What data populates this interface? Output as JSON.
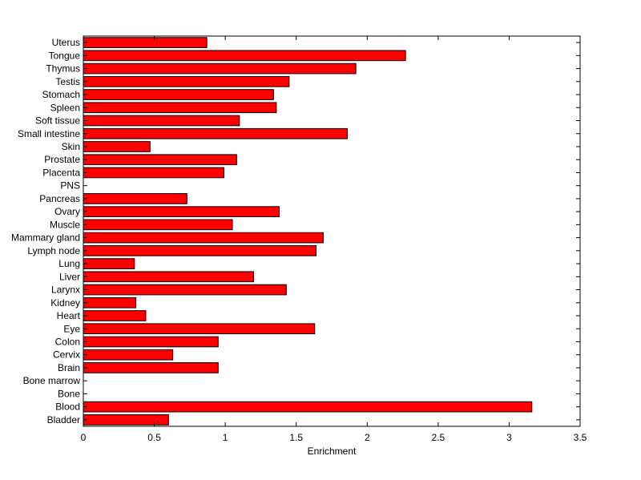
{
  "chart_data": {
    "type": "bar",
    "orientation": "horizontal",
    "categories": [
      "Bladder",
      "Blood",
      "Bone",
      "Bone marrow",
      "Brain",
      "Cervix",
      "Colon",
      "Eye",
      "Heart",
      "Kidney",
      "Larynx",
      "Liver",
      "Lung",
      "Lymph node",
      "Mammary gland",
      "Muscle",
      "Ovary",
      "Pancreas",
      "PNS",
      "Placenta",
      "Prostate",
      "Skin",
      "Small intestine",
      "Soft tissue",
      "Spleen",
      "Stomach",
      "Testis",
      "Thymus",
      "Tongue",
      "Uterus"
    ],
    "values": [
      0.6,
      3.16,
      0,
      0,
      0.95,
      0.63,
      0.95,
      1.63,
      0.44,
      0.37,
      1.43,
      1.2,
      0.36,
      1.64,
      1.69,
      1.05,
      1.38,
      0.73,
      0,
      0.99,
      1.08,
      0.47,
      1.86,
      1.1,
      1.36,
      1.34,
      1.45,
      1.92,
      2.27,
      0.87
    ],
    "title": "",
    "xlabel": "Enrichment",
    "ylabel": "",
    "xlim": [
      0,
      3.5
    ],
    "xticks": [
      "0",
      "0.5",
      "1",
      "1.5",
      "2",
      "2.5",
      "3",
      "3.5"
    ],
    "xtick_values": [
      0,
      0.5,
      1,
      1.5,
      2,
      2.5,
      3,
      3.5
    ],
    "bar_color": "#ff0000",
    "bar_edge_color": "#000000",
    "grid": false,
    "legend": "none"
  }
}
